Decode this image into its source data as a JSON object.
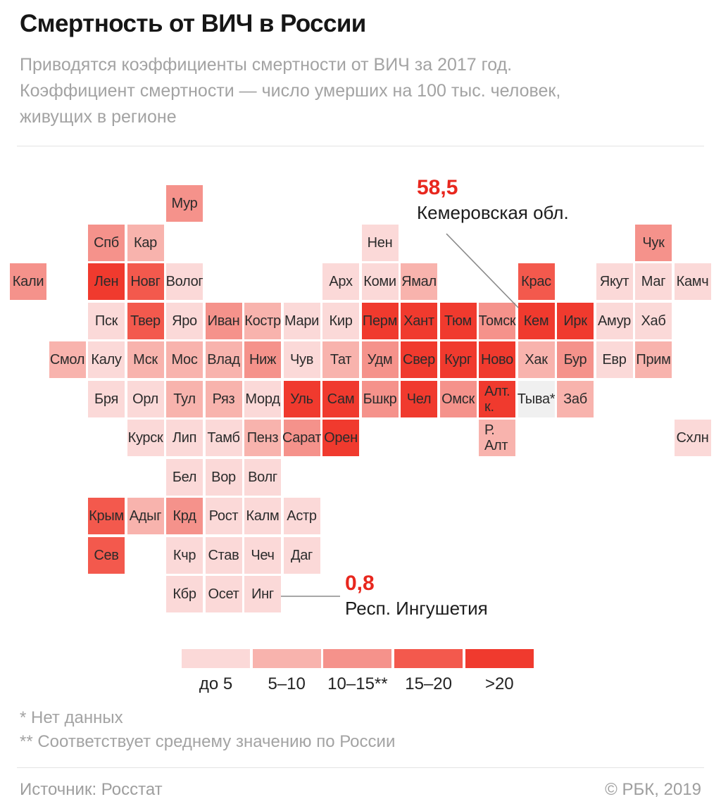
{
  "page": {
    "title": "Смертность от ВИЧ в России",
    "subtitle": "Приводятся коэффициенты смертности от ВИЧ за 2017 год.\nКоэффициент смертности — число умерших на 100 тыс. человек,\nживущих в регионе",
    "footnotes": [
      "* Нет данных",
      "** Соответствует среднему значению по России"
    ],
    "source": "Источник: Росстат",
    "copyright": "© РБК, 2019"
  },
  "colors": {
    "accent_red": "#e8271e",
    "gray_text": "#a3a3a3",
    "annotation_line": "#8a8a8a",
    "bins": {
      "c1": "#fbd9d8",
      "c2": "#f8b3ad",
      "c3": "#f5928b",
      "c4": "#f3594d",
      "c5": "#f03a2e",
      "nd": "#f0f0f0"
    }
  },
  "legend": {
    "items": [
      {
        "label": "до 5",
        "bin": "c1"
      },
      {
        "label": "5–10",
        "bin": "c2"
      },
      {
        "label": "10–15**",
        "bin": "c3"
      },
      {
        "label": "15–20",
        "bin": "c4"
      },
      {
        "label": ">20",
        "bin": "c5"
      }
    ]
  },
  "annotations": {
    "kemerovo": {
      "value": "58,5",
      "name": "Кемеровская обл."
    },
    "ingushetia": {
      "value": "0,8",
      "name": "Респ. Ингушетия"
    }
  },
  "chart_data": {
    "type": "heatmap",
    "title": "Смертность от ВИЧ в России",
    "metric": "Коэффициент смертности от ВИЧ за 2017 год, умерших на 100 тыс. человек",
    "bin_labels": {
      "c1": "до 5",
      "c2": "5–10",
      "c3": "10–15**",
      "c4": "15–20",
      "c5": ">20",
      "nd": "Нет данных"
    },
    "labeled_values": [
      {
        "region": "Кемеровская обл.",
        "tile": "Кем",
        "value": 58.5
      },
      {
        "region": "Респ. Ингушетия",
        "tile": "Инг",
        "value": 0.8
      }
    ],
    "tiles": [
      {
        "r": 0,
        "c": 4,
        "l": "Мур",
        "b": "c3"
      },
      {
        "r": 1,
        "c": 2,
        "l": "Спб",
        "b": "c3"
      },
      {
        "r": 1,
        "c": 3,
        "l": "Кар",
        "b": "c2"
      },
      {
        "r": 1,
        "c": 9,
        "l": "Нен",
        "b": "c1"
      },
      {
        "r": 1,
        "c": 16,
        "l": "Чук",
        "b": "c3"
      },
      {
        "r": 2,
        "c": 0,
        "l": "Кали",
        "b": "c3"
      },
      {
        "r": 2,
        "c": 2,
        "l": "Лен",
        "b": "c5"
      },
      {
        "r": 2,
        "c": 3,
        "l": "Новг",
        "b": "c4"
      },
      {
        "r": 2,
        "c": 4,
        "l": "Волог",
        "b": "c1"
      },
      {
        "r": 2,
        "c": 8,
        "l": "Арх",
        "b": "c1"
      },
      {
        "r": 2,
        "c": 9,
        "l": "Коми",
        "b": "c1"
      },
      {
        "r": 2,
        "c": 10,
        "l": "Ямал",
        "b": "c2"
      },
      {
        "r": 2,
        "c": 13,
        "l": "Крас",
        "b": "c4"
      },
      {
        "r": 2,
        "c": 15,
        "l": "Якут",
        "b": "c1"
      },
      {
        "r": 2,
        "c": 16,
        "l": "Маг",
        "b": "c1"
      },
      {
        "r": 2,
        "c": 17,
        "l": "Камч",
        "b": "c1"
      },
      {
        "r": 3,
        "c": 2,
        "l": "Пск",
        "b": "c1"
      },
      {
        "r": 3,
        "c": 3,
        "l": "Твер",
        "b": "c4"
      },
      {
        "r": 3,
        "c": 4,
        "l": "Яро",
        "b": "c1"
      },
      {
        "r": 3,
        "c": 5,
        "l": "Иван",
        "b": "c3"
      },
      {
        "r": 3,
        "c": 6,
        "l": "Костр",
        "b": "c2"
      },
      {
        "r": 3,
        "c": 7,
        "l": "Мари",
        "b": "c1"
      },
      {
        "r": 3,
        "c": 8,
        "l": "Кир",
        "b": "c1"
      },
      {
        "r": 3,
        "c": 9,
        "l": "Перм",
        "b": "c5"
      },
      {
        "r": 3,
        "c": 10,
        "l": "Хант",
        "b": "c5"
      },
      {
        "r": 3,
        "c": 11,
        "l": "Тюм",
        "b": "c5"
      },
      {
        "r": 3,
        "c": 12,
        "l": "Томск",
        "b": "c3"
      },
      {
        "r": 3,
        "c": 13,
        "l": "Кем",
        "b": "c5"
      },
      {
        "r": 3,
        "c": 14,
        "l": "Ирк",
        "b": "c5"
      },
      {
        "r": 3,
        "c": 15,
        "l": "Амур",
        "b": "c1"
      },
      {
        "r": 3,
        "c": 16,
        "l": "Хаб",
        "b": "c1"
      },
      {
        "r": 4,
        "c": 1,
        "l": "Смол",
        "b": "c2"
      },
      {
        "r": 4,
        "c": 2,
        "l": "Калу",
        "b": "c1"
      },
      {
        "r": 4,
        "c": 3,
        "l": "Мск",
        "b": "c2"
      },
      {
        "r": 4,
        "c": 4,
        "l": "Мос",
        "b": "c2"
      },
      {
        "r": 4,
        "c": 5,
        "l": "Влад",
        "b": "c2"
      },
      {
        "r": 4,
        "c": 6,
        "l": "Ниж",
        "b": "c3"
      },
      {
        "r": 4,
        "c": 7,
        "l": "Чув",
        "b": "c1"
      },
      {
        "r": 4,
        "c": 8,
        "l": "Тат",
        "b": "c2"
      },
      {
        "r": 4,
        "c": 9,
        "l": "Удм",
        "b": "c3"
      },
      {
        "r": 4,
        "c": 10,
        "l": "Свер",
        "b": "c5"
      },
      {
        "r": 4,
        "c": 11,
        "l": "Кург",
        "b": "c5"
      },
      {
        "r": 4,
        "c": 12,
        "l": "Ново",
        "b": "c5"
      },
      {
        "r": 4,
        "c": 13,
        "l": "Хак",
        "b": "c2"
      },
      {
        "r": 4,
        "c": 14,
        "l": "Бур",
        "b": "c3"
      },
      {
        "r": 4,
        "c": 15,
        "l": "Евр",
        "b": "c1"
      },
      {
        "r": 4,
        "c": 16,
        "l": "Прим",
        "b": "c2"
      },
      {
        "r": 5,
        "c": 2,
        "l": "Бря",
        "b": "c1"
      },
      {
        "r": 5,
        "c": 3,
        "l": "Орл",
        "b": "c1"
      },
      {
        "r": 5,
        "c": 4,
        "l": "Тул",
        "b": "c2"
      },
      {
        "r": 5,
        "c": 5,
        "l": "Ряз",
        "b": "c2"
      },
      {
        "r": 5,
        "c": 6,
        "l": "Морд",
        "b": "c1"
      },
      {
        "r": 5,
        "c": 7,
        "l": "Уль",
        "b": "c5"
      },
      {
        "r": 5,
        "c": 8,
        "l": "Сам",
        "b": "c5"
      },
      {
        "r": 5,
        "c": 9,
        "l": "Бшкр",
        "b": "c3"
      },
      {
        "r": 5,
        "c": 10,
        "l": "Чел",
        "b": "c5"
      },
      {
        "r": 5,
        "c": 11,
        "l": "Омск",
        "b": "c3"
      },
      {
        "r": 5,
        "c": 12,
        "l": "Алт.\nк.",
        "b": "c5"
      },
      {
        "r": 5,
        "c": 13,
        "l": "Тыва*",
        "b": "nd"
      },
      {
        "r": 5,
        "c": 14,
        "l": "Заб",
        "b": "c2"
      },
      {
        "r": 6,
        "c": 3,
        "l": "Курск",
        "b": "c1"
      },
      {
        "r": 6,
        "c": 4,
        "l": "Лип",
        "b": "c1"
      },
      {
        "r": 6,
        "c": 5,
        "l": "Тамб",
        "b": "c1"
      },
      {
        "r": 6,
        "c": 6,
        "l": "Пенз",
        "b": "c2"
      },
      {
        "r": 6,
        "c": 7,
        "l": "Сарат",
        "b": "c3"
      },
      {
        "r": 6,
        "c": 8,
        "l": "Орен",
        "b": "c5"
      },
      {
        "r": 6,
        "c": 12,
        "l": "Р.\nАлт",
        "b": "c2"
      },
      {
        "r": 6,
        "c": 17,
        "l": "Схлн",
        "b": "c1"
      },
      {
        "r": 7,
        "c": 4,
        "l": "Бел",
        "b": "c1"
      },
      {
        "r": 7,
        "c": 5,
        "l": "Вор",
        "b": "c1"
      },
      {
        "r": 7,
        "c": 6,
        "l": "Волг",
        "b": "c1"
      },
      {
        "r": 8,
        "c": 2,
        "l": "Крым",
        "b": "c4"
      },
      {
        "r": 8,
        "c": 3,
        "l": "Адыг",
        "b": "c2"
      },
      {
        "r": 8,
        "c": 4,
        "l": "Крд",
        "b": "c3"
      },
      {
        "r": 8,
        "c": 5,
        "l": "Рост",
        "b": "c1"
      },
      {
        "r": 8,
        "c": 6,
        "l": "Калм",
        "b": "c1"
      },
      {
        "r": 8,
        "c": 7,
        "l": "Астр",
        "b": "c1"
      },
      {
        "r": 9,
        "c": 2,
        "l": "Сев",
        "b": "c4"
      },
      {
        "r": 9,
        "c": 4,
        "l": "Кчр",
        "b": "c1"
      },
      {
        "r": 9,
        "c": 5,
        "l": "Став",
        "b": "c1"
      },
      {
        "r": 9,
        "c": 6,
        "l": "Чеч",
        "b": "c1"
      },
      {
        "r": 9,
        "c": 7,
        "l": "Даг",
        "b": "c1"
      },
      {
        "r": 10,
        "c": 4,
        "l": "Кбр",
        "b": "c1"
      },
      {
        "r": 10,
        "c": 5,
        "l": "Осет",
        "b": "c1"
      },
      {
        "r": 10,
        "c": 6,
        "l": "Инг",
        "b": "c1"
      }
    ]
  }
}
